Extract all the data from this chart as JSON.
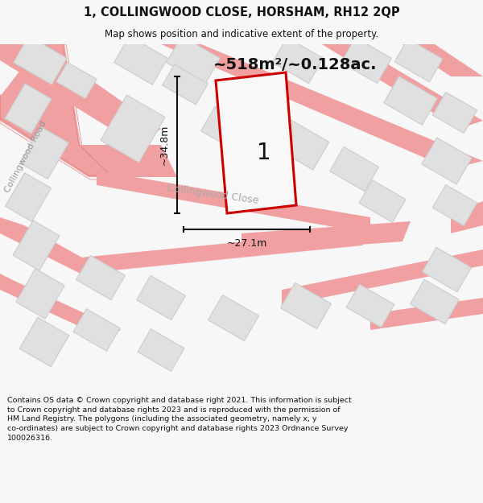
{
  "title": "1, COLLINGWOOD CLOSE, HORSHAM, RH12 2QP",
  "subtitle": "Map shows position and indicative extent of the property.",
  "area_text": "~518m²/~0.128ac.",
  "dim_height": "~34.8m",
  "dim_width": "~27.1m",
  "plot_label": "1",
  "road_label_1": "Collingwood Road",
  "road_label_2": "Collingwood Close",
  "footer": "Contains OS data © Crown copyright and database right 2021. This information is subject\nto Crown copyright and database rights 2023 and is reproduced with the permission of\nHM Land Registry. The polygons (including the associated geometry, namely x, y\nco-ordinates) are subject to Crown copyright and database rights 2023 Ordnance Survey\n100026316.",
  "bg_color": "#f7f7f7",
  "map_bg": "#f0f0f0",
  "road_color": "#f0a0a0",
  "building_color": "#e0e0e0",
  "plot_outline_color": "#cc0000",
  "plot_fill_color": "#f8f8f8",
  "dim_color": "#111111",
  "title_color": "#111111",
  "road_outline_color": "#e08080"
}
